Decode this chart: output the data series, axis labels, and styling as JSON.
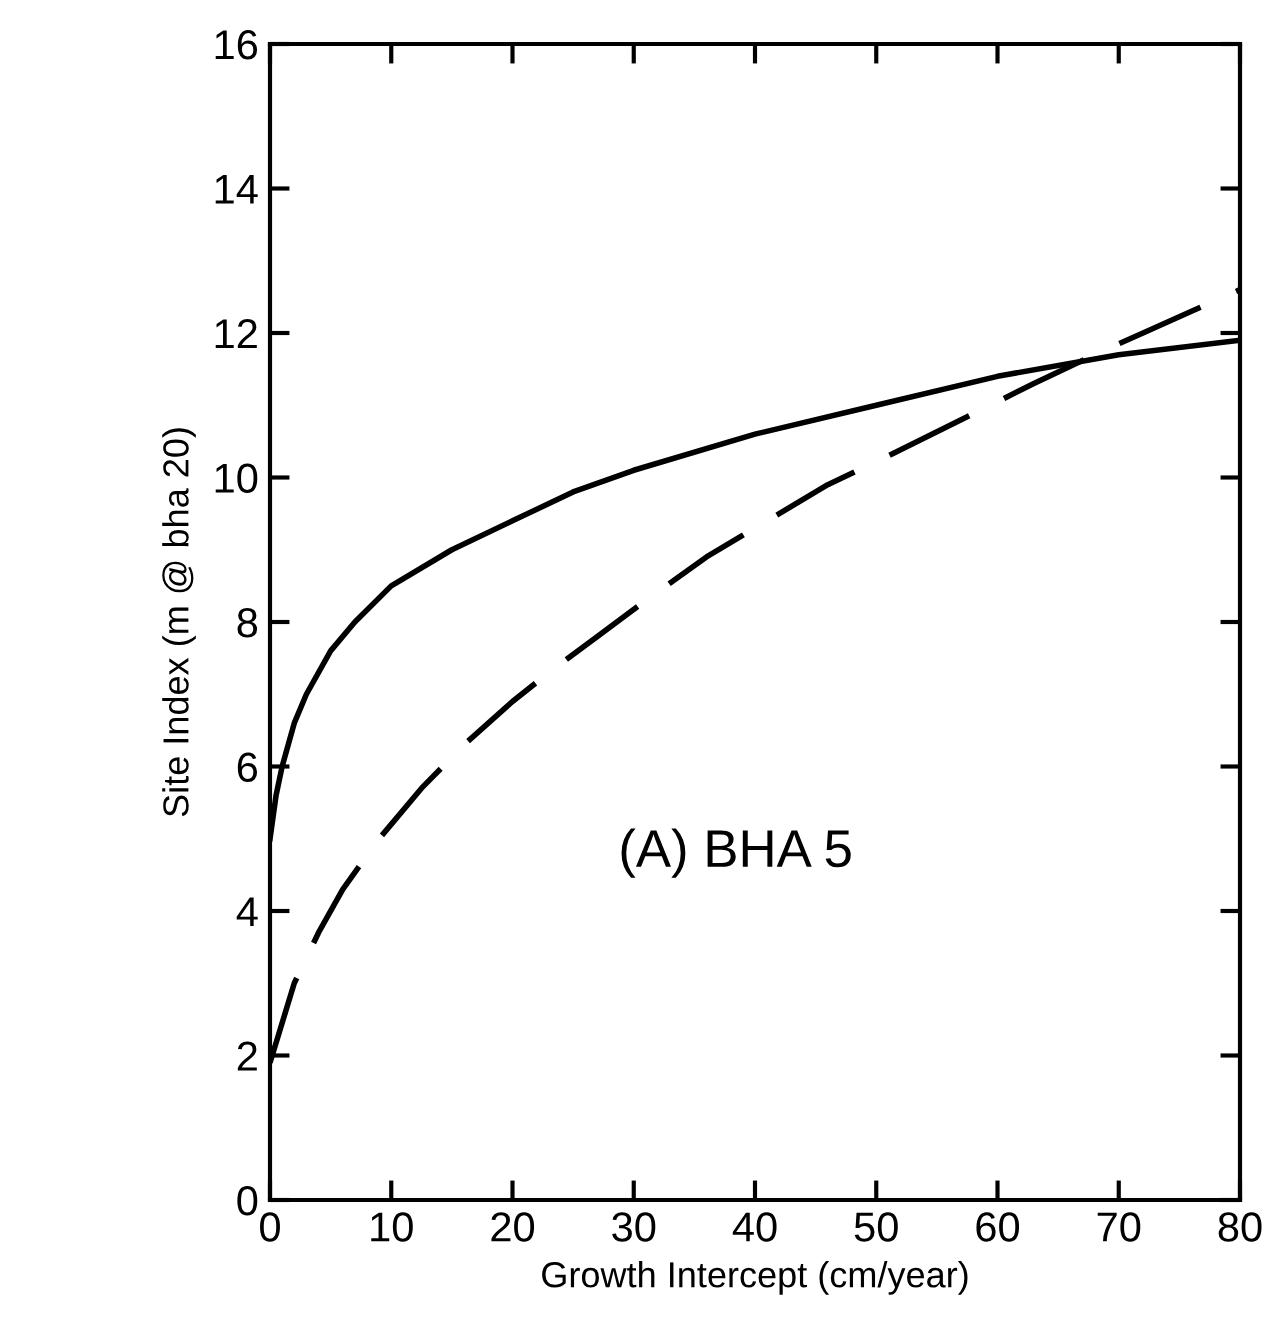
{
  "chart_data": {
    "type": "line",
    "xlabel": "Growth Intercept (cm/year)",
    "ylabel": "Site Index (m @ bha 20)",
    "annotations": [
      "(A) BHA 5"
    ],
    "xlim": [
      0,
      80
    ],
    "ylim": [
      0,
      16
    ],
    "xticks": [
      0,
      10,
      20,
      30,
      40,
      50,
      60,
      70,
      80
    ],
    "yticks": [
      0,
      2,
      4,
      6,
      8,
      10,
      12,
      14,
      16
    ],
    "grid": false,
    "marker": "none",
    "series": [
      {
        "color": "#000000",
        "line_style": "solid",
        "x": [
          0,
          0.5,
          1,
          2,
          3,
          5,
          7,
          10,
          15,
          20,
          25,
          30,
          40,
          50,
          60,
          70,
          80
        ],
        "values": [
          5.0,
          5.6,
          6.0,
          6.6,
          7.0,
          7.6,
          8.0,
          8.5,
          9.0,
          9.4,
          9.8,
          10.1,
          10.6,
          11.0,
          11.4,
          11.7,
          11.9
        ]
      },
      {
        "color": "#000000",
        "line_style": "dashed",
        "x": [
          0,
          2,
          4,
          6,
          9,
          12.5,
          16,
          20,
          23,
          27,
          31,
          36,
          42,
          46,
          51,
          57,
          63,
          68,
          72,
          76,
          80
        ],
        "values": [
          1.9,
          3.0,
          3.7,
          4.3,
          5.0,
          5.7,
          6.3,
          6.9,
          7.3,
          7.8,
          8.3,
          8.9,
          9.5,
          9.9,
          10.3,
          10.8,
          11.3,
          11.7,
          12.0,
          12.3,
          12.6
        ]
      }
    ]
  }
}
